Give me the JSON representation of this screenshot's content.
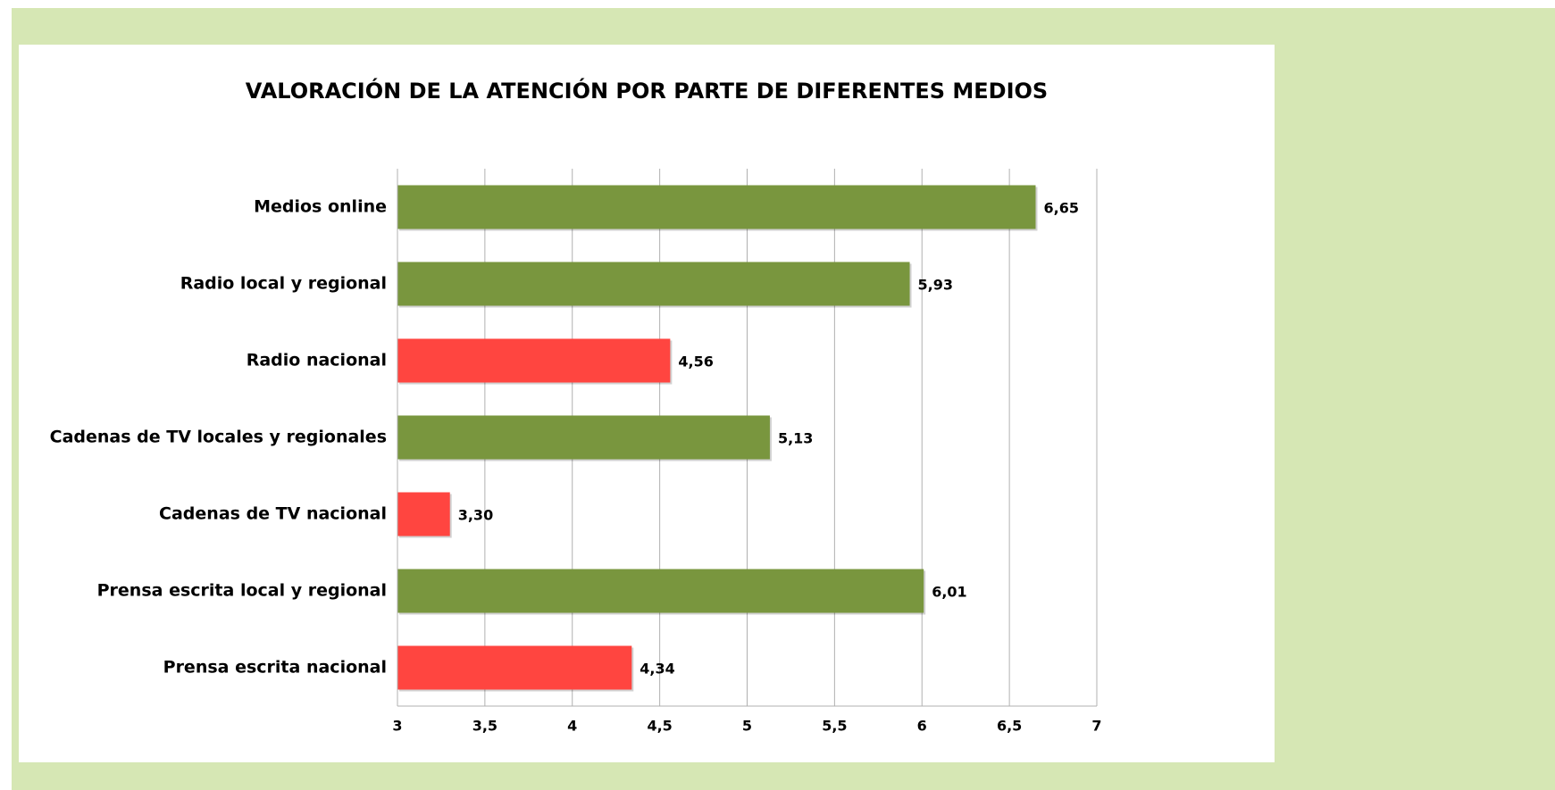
{
  "chart_data": {
    "type": "bar",
    "orientation": "horizontal",
    "title": "VALORACIÓN DE LA ATENCIÓN POR PARTE DE DIFERENTES MEDIOS",
    "categories": [
      "Medios online",
      "Radio local y regional",
      "Radio nacional",
      "Cadenas de TV locales y regionales",
      "Cadenas de TV nacional",
      "Prensa escrita local y regional",
      "Prensa escrita nacional"
    ],
    "values": [
      6.65,
      5.93,
      4.56,
      5.13,
      3.3,
      6.01,
      4.34
    ],
    "value_labels": [
      "6,65",
      "5,93",
      "4,56",
      "5,13",
      "3,30",
      "6,01",
      "4,34"
    ],
    "colors": [
      "#79963e",
      "#79963e",
      "#ff4540",
      "#79963e",
      "#ff4540",
      "#79963e",
      "#ff4540"
    ],
    "xlim": [
      3,
      7
    ],
    "xticks": [
      3,
      {
        "value": 3.5,
        "label": "3,5"
      },
      4,
      {
        "value": 4.5,
        "label": "4,5"
      },
      5,
      {
        "value": 5.5,
        "label": "5,5"
      },
      6,
      {
        "value": 6.5,
        "label": "6,5"
      },
      7
    ],
    "grid": true
  }
}
